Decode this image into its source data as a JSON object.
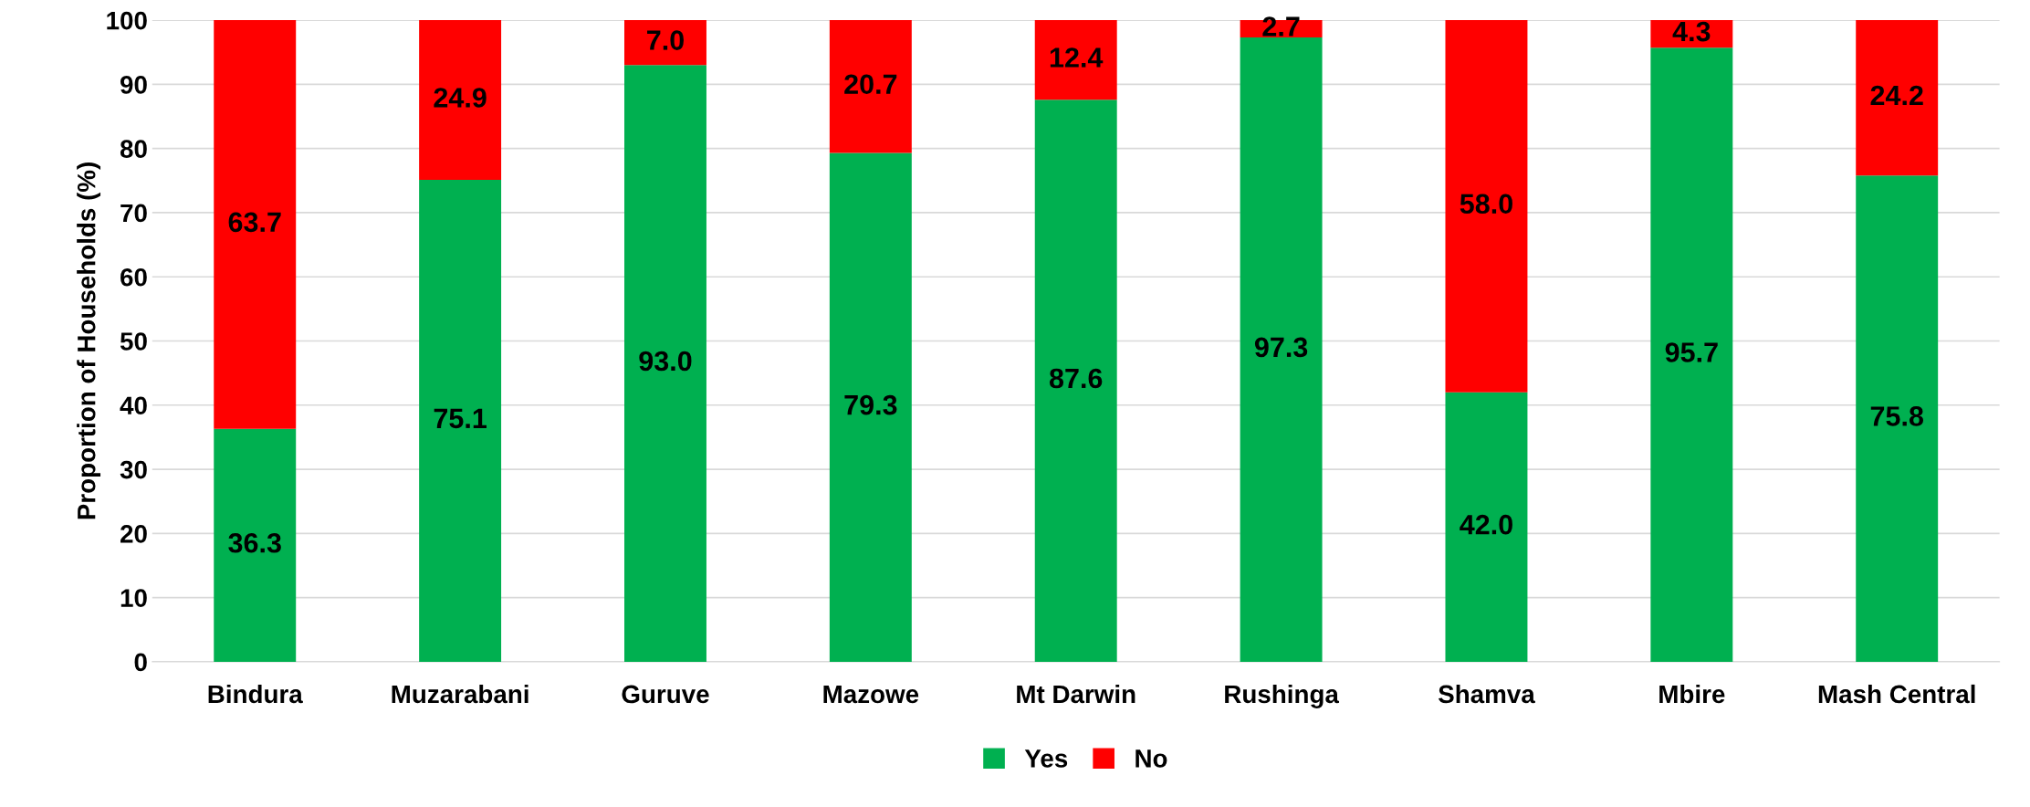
{
  "chart_data": {
    "type": "bar",
    "stacked": true,
    "ylabel": "Proportion of Households (%)",
    "categories": [
      "Bindura",
      "Muzarabani",
      "Guruve",
      "Mazowe",
      "Mt Darwin",
      "Rushinga",
      "Shamva",
      "Mbire",
      "Mash Central"
    ],
    "series": [
      {
        "name": "Yes",
        "color": "#00b050",
        "values": [
          36.3,
          75.1,
          93.0,
          79.3,
          87.6,
          97.3,
          42.0,
          95.7,
          75.8
        ],
        "value_labels": [
          "36.3",
          "75.1",
          "93.0",
          "79.3",
          "87.6",
          "97.3",
          "42.0",
          "95.7",
          "75.8"
        ]
      },
      {
        "name": "No",
        "color": "#ff0000",
        "values": [
          63.7,
          24.9,
          7.0,
          20.7,
          12.4,
          2.7,
          58.0,
          4.3,
          24.2
        ],
        "value_labels": [
          "63.7",
          "24.9",
          "7.0",
          "20.7",
          "12.4",
          "2.7",
          "58.0",
          "4.3",
          "24.2"
        ]
      }
    ],
    "ylim": [
      0,
      100
    ],
    "yticks": [
      0,
      10,
      20,
      30,
      40,
      50,
      60,
      70,
      80,
      90,
      100
    ],
    "grid": "y",
    "legend": "bottom"
  }
}
